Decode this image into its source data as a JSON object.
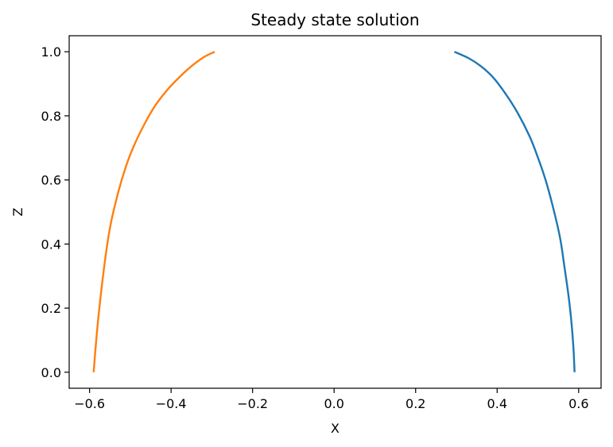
{
  "chart_data": {
    "type": "line",
    "title": "Steady state solution",
    "xlabel": "X",
    "ylabel": "Z",
    "xlim": [
      -0.65,
      0.655
    ],
    "ylim": [
      -0.05,
      1.05
    ],
    "x_ticks": [
      -0.6,
      -0.4,
      -0.2,
      0.0,
      0.2,
      0.4,
      0.6
    ],
    "x_tick_labels": [
      "−0.6",
      "−0.4",
      "−0.2",
      "0.0",
      "0.2",
      "0.4",
      "0.6"
    ],
    "y_ticks": [
      0.0,
      0.2,
      0.4,
      0.6,
      0.8,
      1.0
    ],
    "y_tick_labels": [
      "0.0",
      "0.2",
      "0.4",
      "0.6",
      "0.8",
      "1.0"
    ],
    "grid": false,
    "legend": "none",
    "series": [
      {
        "color": "#1f77b4",
        "points": [
          {
            "x": 0.295,
            "y": 1.0
          },
          {
            "x": 0.33,
            "y": 0.98
          },
          {
            "x": 0.36,
            "y": 0.955
          },
          {
            "x": 0.39,
            "y": 0.92
          },
          {
            "x": 0.42,
            "y": 0.87
          },
          {
            "x": 0.45,
            "y": 0.81
          },
          {
            "x": 0.48,
            "y": 0.735
          },
          {
            "x": 0.5,
            "y": 0.67
          },
          {
            "x": 0.52,
            "y": 0.595
          },
          {
            "x": 0.54,
            "y": 0.5
          },
          {
            "x": 0.555,
            "y": 0.415
          },
          {
            "x": 0.565,
            "y": 0.33
          },
          {
            "x": 0.575,
            "y": 0.24
          },
          {
            "x": 0.582,
            "y": 0.16
          },
          {
            "x": 0.587,
            "y": 0.08
          },
          {
            "x": 0.59,
            "y": 0.0
          }
        ]
      },
      {
        "color": "#ff7f0e",
        "points": [
          {
            "x": -0.59,
            "y": 0.0
          },
          {
            "x": -0.58,
            "y": 0.15
          },
          {
            "x": -0.565,
            "y": 0.32
          },
          {
            "x": -0.55,
            "y": 0.45
          },
          {
            "x": -0.53,
            "y": 0.56
          },
          {
            "x": -0.51,
            "y": 0.645
          },
          {
            "x": -0.49,
            "y": 0.71
          },
          {
            "x": -0.465,
            "y": 0.775
          },
          {
            "x": -0.44,
            "y": 0.83
          },
          {
            "x": -0.41,
            "y": 0.88
          },
          {
            "x": -0.38,
            "y": 0.92
          },
          {
            "x": -0.35,
            "y": 0.955
          },
          {
            "x": -0.32,
            "y": 0.983
          },
          {
            "x": -0.293,
            "y": 1.0
          }
        ]
      }
    ]
  }
}
